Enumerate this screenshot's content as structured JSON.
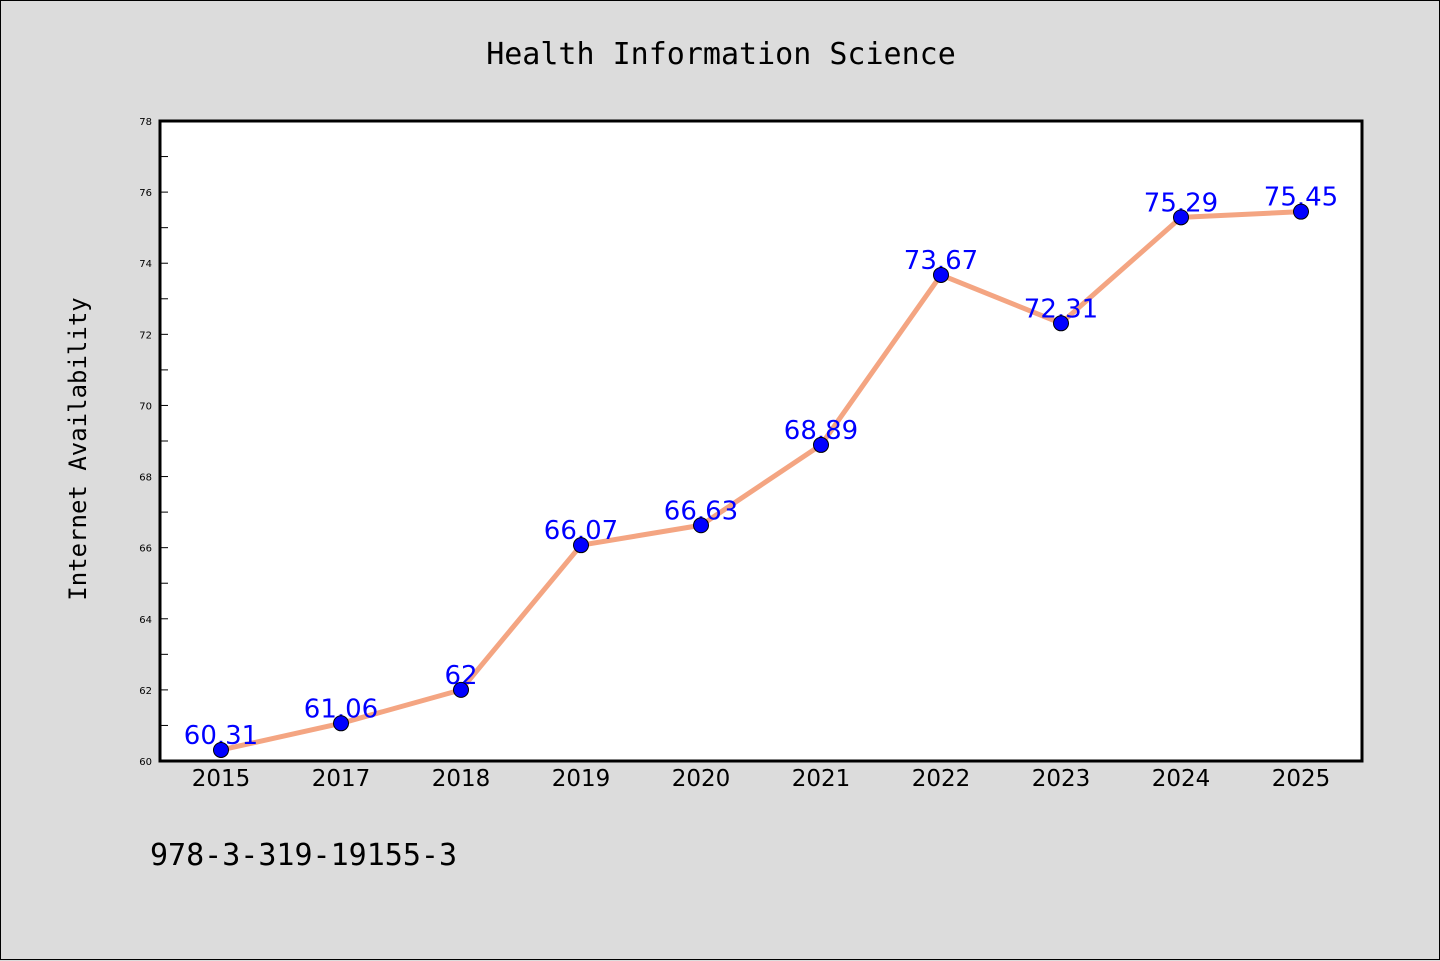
{
  "footnote": "978-3-319-19155-3",
  "chart_data": {
    "type": "line",
    "title": "Health Information Science",
    "xlabel": "",
    "ylabel": "Internet Availability",
    "categories": [
      "2015",
      "2017",
      "2018",
      "2019",
      "2020",
      "2021",
      "2022",
      "2023",
      "2024",
      "2025"
    ],
    "values": [
      60.31,
      61.06,
      62,
      66.07,
      66.63,
      68.89,
      73.67,
      72.31,
      75.29,
      75.45
    ],
    "data_labels": [
      "60.31",
      "61.06",
      "62",
      "66.07",
      "66.63",
      "68.89",
      "73.67",
      "72.31",
      "75.29",
      "75.45"
    ],
    "ylim": [
      60,
      78
    ],
    "yticks": [
      "60",
      "62",
      "64",
      "66",
      "68",
      "70",
      "72",
      "74",
      "76",
      "78"
    ],
    "grid": false,
    "legend": "none",
    "colors": {
      "line": "#f4a582",
      "marker": "#0000ff",
      "marker_edge": "#000000",
      "label": "#0000ff",
      "background": "#dcdcdc",
      "plot_background": "#ffffff"
    }
  }
}
